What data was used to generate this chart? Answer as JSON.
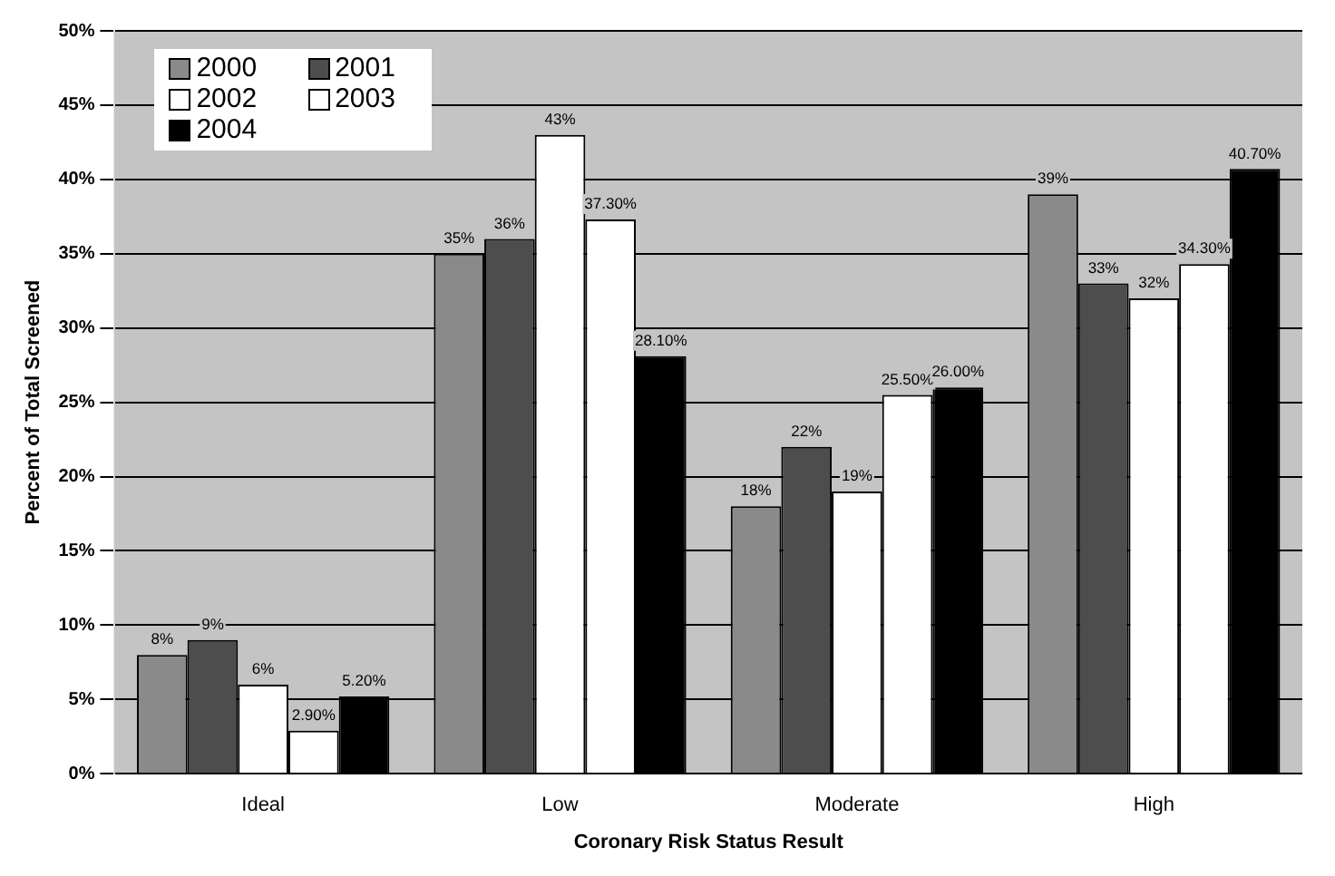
{
  "chart_data": {
    "type": "bar",
    "xlabel": "Coronary Risk Status Result",
    "ylabel": "Percent of Total Screened",
    "categories": [
      "Ideal",
      "Low",
      "Moderate",
      "High"
    ],
    "series": [
      {
        "name": "2000",
        "color": "#8a8a8a",
        "values": [
          8,
          35,
          18,
          39
        ],
        "value_labels": [
          "8%",
          "35%",
          "18%",
          "39%"
        ]
      },
      {
        "name": "2001",
        "color": "#4d4d4d",
        "values": [
          9,
          36,
          22,
          33
        ],
        "value_labels": [
          "9%",
          "36%",
          "22%",
          "33%"
        ]
      },
      {
        "name": "2002",
        "color": "#ffffff",
        "values": [
          6,
          43,
          19,
          32
        ],
        "value_labels": [
          "6%",
          "43%",
          "19%",
          "32%"
        ]
      },
      {
        "name": "2003",
        "color": "#ffffff",
        "values": [
          2.9,
          37.3,
          25.5,
          34.3
        ],
        "value_labels": [
          "2.90%",
          "37.30%",
          "25.50%",
          "34.30%"
        ]
      },
      {
        "name": "2004",
        "color": "#000000",
        "values": [
          5.2,
          28.1,
          26,
          40.7
        ],
        "value_labels": [
          "5.20%",
          "28.10%",
          "26.00%",
          "40.70%"
        ]
      }
    ],
    "ylim": [
      0,
      50
    ],
    "yticks": [
      {
        "value": 0,
        "label": "0%"
      },
      {
        "value": 5,
        "label": "5%"
      },
      {
        "value": 10,
        "label": "10%"
      },
      {
        "value": 15,
        "label": "15%"
      },
      {
        "value": 20,
        "label": "20%"
      },
      {
        "value": 25,
        "label": "25%"
      },
      {
        "value": 30,
        "label": "30%"
      },
      {
        "value": 35,
        "label": "35%"
      },
      {
        "value": 40,
        "label": "40%"
      },
      {
        "value": 45,
        "label": "45%"
      },
      {
        "value": 50,
        "label": "50%"
      }
    ],
    "grid": "y",
    "legend": "top left"
  }
}
